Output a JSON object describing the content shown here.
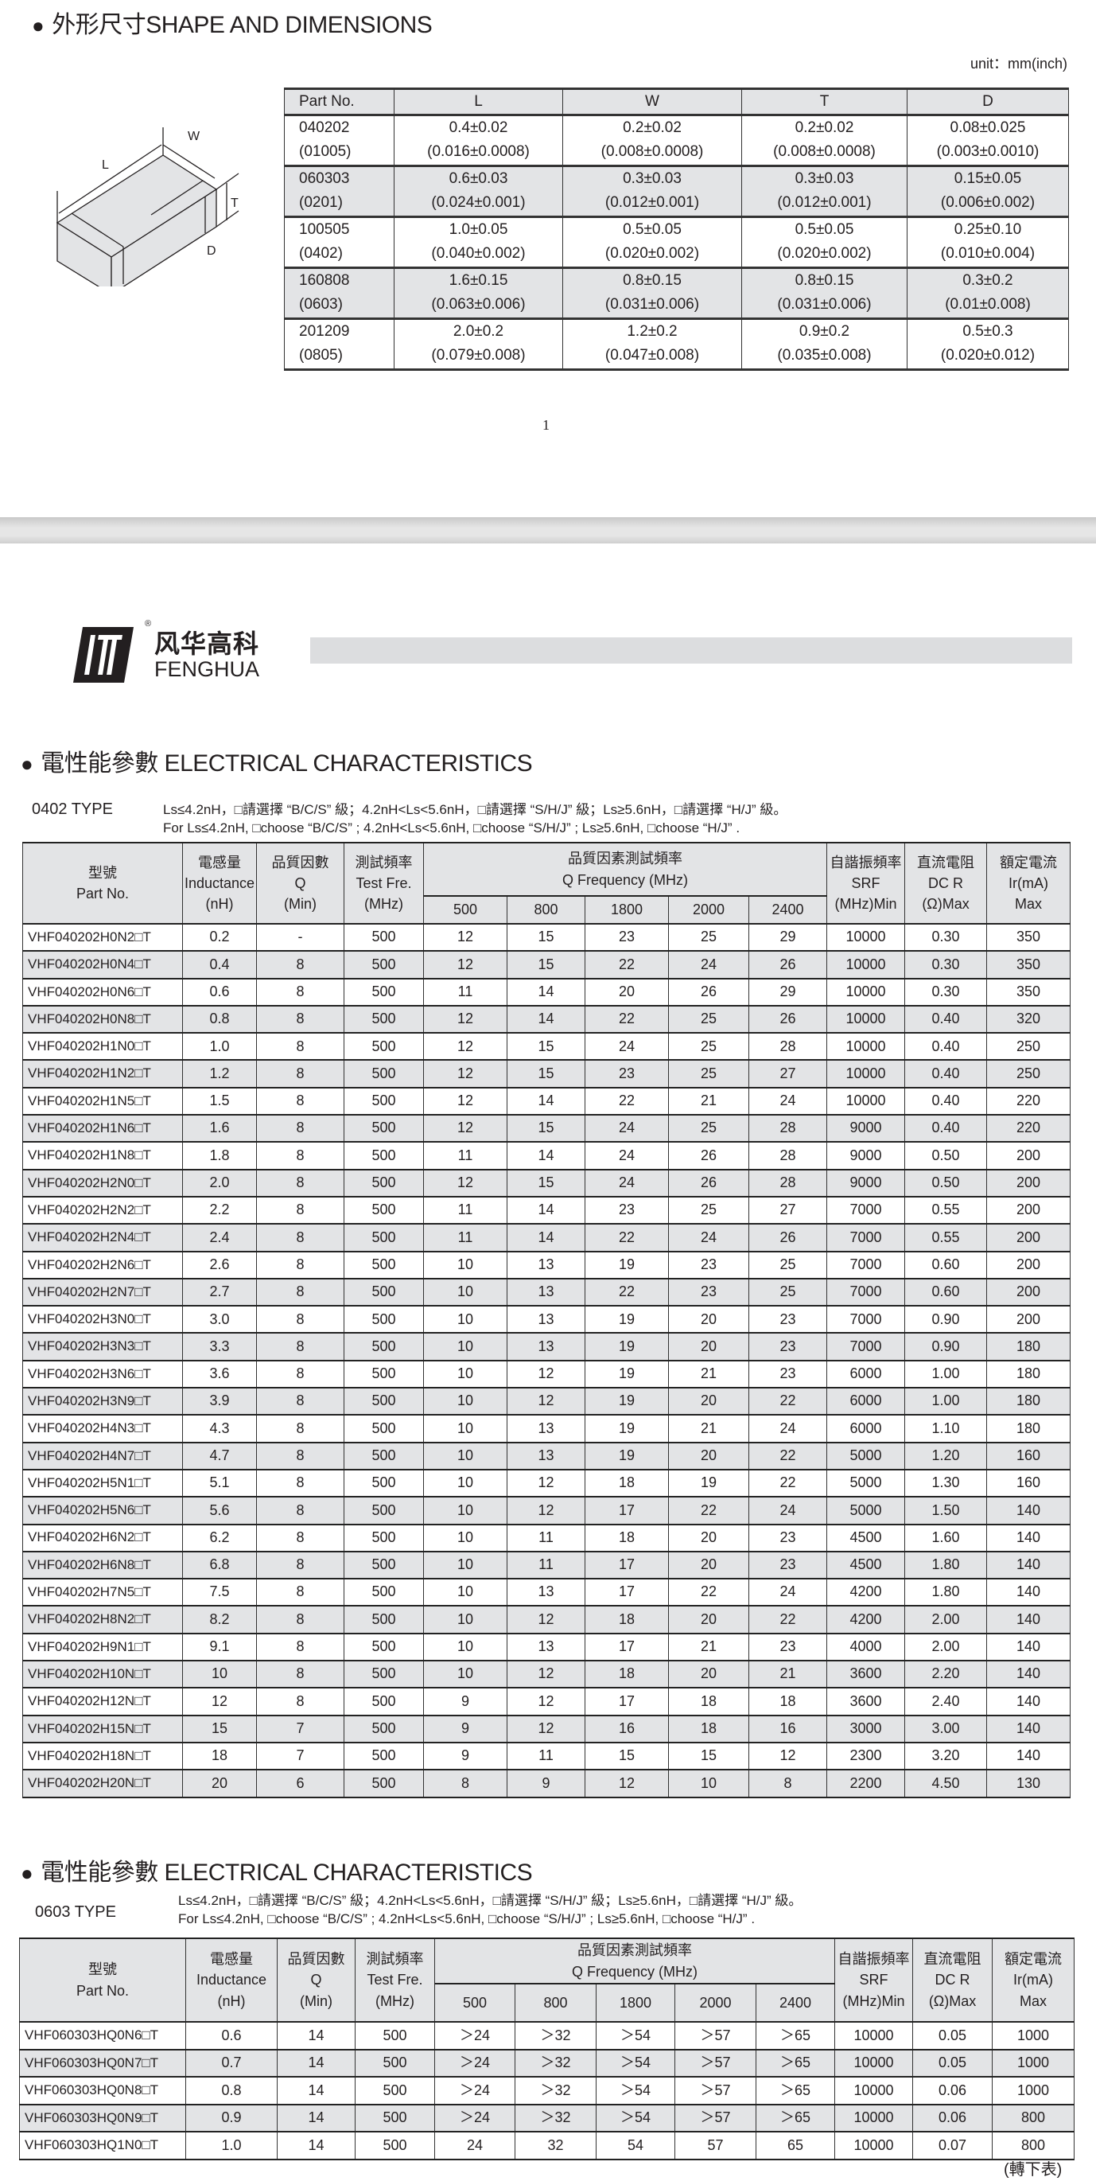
{
  "shape": {
    "title": "外形尺寸SHAPE AND DIMENSIONS",
    "unit": "unit：mm(inch)",
    "diagram_labels": {
      "L": "L",
      "W": "W",
      "T": "T",
      "D": "D"
    },
    "headers": [
      "Part No.",
      "L",
      "W",
      "T",
      "D"
    ],
    "rows": [
      [
        [
          "040202",
          "(01005)"
        ],
        [
          "0.4±0.02",
          "(0.016±0.0008)"
        ],
        [
          "0.2±0.02",
          "(0.008±0.0008)"
        ],
        [
          "0.2±0.02",
          "(0.008±0.0008)"
        ],
        [
          "0.08±0.025",
          "(0.003±0.0010)"
        ]
      ],
      [
        [
          "060303",
          "(0201)"
        ],
        [
          "0.6±0.03",
          "(0.024±0.001)"
        ],
        [
          "0.3±0.03",
          "(0.012±0.001)"
        ],
        [
          "0.3±0.03",
          "(0.012±0.001)"
        ],
        [
          "0.15±0.05",
          "(0.006±0.002)"
        ]
      ],
      [
        [
          "100505",
          "(0402)"
        ],
        [
          "1.0±0.05",
          "(0.040±0.002)"
        ],
        [
          "0.5±0.05",
          "(0.020±0.002)"
        ],
        [
          "0.5±0.05",
          "(0.020±0.002)"
        ],
        [
          "0.25±0.10",
          "(0.010±0.004)"
        ]
      ],
      [
        [
          "160808",
          "(0603)"
        ],
        [
          "1.6±0.15",
          "(0.063±0.006)"
        ],
        [
          "0.8±0.15",
          "(0.031±0.006)"
        ],
        [
          "0.8±0.15",
          "(0.031±0.006)"
        ],
        [
          "0.3±0.2",
          "(0.01±0.008)"
        ]
      ],
      [
        [
          "201209",
          "(0805)"
        ],
        [
          "2.0±0.2",
          "(0.079±0.008)"
        ],
        [
          "1.2±0.2",
          "(0.047±0.008)"
        ],
        [
          "0.9±0.2",
          "(0.035±0.008)"
        ],
        [
          "0.5±0.3",
          "(0.020±0.012)"
        ]
      ]
    ]
  },
  "page_number": "1",
  "logo": {
    "cn": "风华高科",
    "en": "FENGHUA",
    "mark": "®"
  },
  "ee_headers": {
    "part": [
      "型號",
      "Part No."
    ],
    "inductance": [
      "電感量",
      "Inductance",
      "(nH)"
    ],
    "q": [
      "品質因數",
      "Q",
      "(Min)"
    ],
    "test": [
      "測試頻率",
      "Test Fre.",
      "(MHz)"
    ],
    "qfreq": [
      "品質因素測試頻率",
      "Q Frequency (MHz)"
    ],
    "freqs": [
      "500",
      "800",
      "1800",
      "2000",
      "2400"
    ],
    "srf": [
      "自諧振頻率",
      "SRF",
      "(MHz)Min"
    ],
    "dcr": [
      "直流電阻",
      "DC R",
      "(Ω)Max"
    ],
    "ir": [
      "額定電流",
      "Ir(mA)",
      "Max"
    ]
  },
  "section_0402": {
    "title": "電性能參數 ELECTRICAL CHARACTERISTICS",
    "type": "0402 TYPE",
    "note_cn": "Ls≤4.2nH，□請選擇 “B/C/S” 級；4.2nH<Ls<5.6nH，□請選擇 “S/H/J” 級；Ls≥5.6nH，□請選擇 “H/J” 級。",
    "note_en": "For Ls≤4.2nH, □choose “B/C/S” ; 4.2nH<Ls<5.6nH, □choose “S/H/J” ; Ls≥5.6nH, □choose “H/J” .",
    "rows": [
      [
        "VHF040202H0N2□T",
        "0.2",
        "-",
        "500",
        "12",
        "15",
        "23",
        "25",
        "29",
        "10000",
        "0.30",
        "350"
      ],
      [
        "VHF040202H0N4□T",
        "0.4",
        "8",
        "500",
        "12",
        "15",
        "22",
        "24",
        "26",
        "10000",
        "0.30",
        "350"
      ],
      [
        "VHF040202H0N6□T",
        "0.6",
        "8",
        "500",
        "11",
        "14",
        "20",
        "26",
        "29",
        "10000",
        "0.30",
        "350"
      ],
      [
        "VHF040202H0N8□T",
        "0.8",
        "8",
        "500",
        "12",
        "14",
        "22",
        "25",
        "26",
        "10000",
        "0.40",
        "320"
      ],
      [
        "VHF040202H1N0□T",
        "1.0",
        "8",
        "500",
        "12",
        "15",
        "24",
        "25",
        "28",
        "10000",
        "0.40",
        "250"
      ],
      [
        "VHF040202H1N2□T",
        "1.2",
        "8",
        "500",
        "12",
        "15",
        "23",
        "25",
        "27",
        "10000",
        "0.40",
        "250"
      ],
      [
        "VHF040202H1N5□T",
        "1.5",
        "8",
        "500",
        "12",
        "14",
        "22",
        "21",
        "24",
        "10000",
        "0.40",
        "220"
      ],
      [
        "VHF040202H1N6□T",
        "1.6",
        "8",
        "500",
        "12",
        "15",
        "24",
        "25",
        "28",
        "9000",
        "0.40",
        "220"
      ],
      [
        "VHF040202H1N8□T",
        "1.8",
        "8",
        "500",
        "11",
        "14",
        "24",
        "26",
        "28",
        "9000",
        "0.50",
        "200"
      ],
      [
        "VHF040202H2N0□T",
        "2.0",
        "8",
        "500",
        "12",
        "15",
        "24",
        "26",
        "28",
        "9000",
        "0.50",
        "200"
      ],
      [
        "VHF040202H2N2□T",
        "2.2",
        "8",
        "500",
        "11",
        "14",
        "23",
        "25",
        "27",
        "7000",
        "0.55",
        "200"
      ],
      [
        "VHF040202H2N4□T",
        "2.4",
        "8",
        "500",
        "11",
        "14",
        "22",
        "24",
        "26",
        "7000",
        "0.55",
        "200"
      ],
      [
        "VHF040202H2N6□T",
        "2.6",
        "8",
        "500",
        "10",
        "13",
        "19",
        "23",
        "25",
        "7000",
        "0.60",
        "200"
      ],
      [
        "VHF040202H2N7□T",
        "2.7",
        "8",
        "500",
        "10",
        "13",
        "22",
        "23",
        "25",
        "7000",
        "0.60",
        "200"
      ],
      [
        "VHF040202H3N0□T",
        "3.0",
        "8",
        "500",
        "10",
        "13",
        "19",
        "20",
        "23",
        "7000",
        "0.90",
        "200"
      ],
      [
        "VHF040202H3N3□T",
        "3.3",
        "8",
        "500",
        "10",
        "13",
        "19",
        "20",
        "23",
        "7000",
        "0.90",
        "180"
      ],
      [
        "VHF040202H3N6□T",
        "3.6",
        "8",
        "500",
        "10",
        "12",
        "19",
        "21",
        "23",
        "6000",
        "1.00",
        "180"
      ],
      [
        "VHF040202H3N9□T",
        "3.9",
        "8",
        "500",
        "10",
        "12",
        "19",
        "20",
        "22",
        "6000",
        "1.00",
        "180"
      ],
      [
        "VHF040202H4N3□T",
        "4.3",
        "8",
        "500",
        "10",
        "13",
        "19",
        "21",
        "24",
        "6000",
        "1.10",
        "180"
      ],
      [
        "VHF040202H4N7□T",
        "4.7",
        "8",
        "500",
        "10",
        "13",
        "19",
        "20",
        "22",
        "5000",
        "1.20",
        "160"
      ],
      [
        "VHF040202H5N1□T",
        "5.1",
        "8",
        "500",
        "10",
        "12",
        "18",
        "19",
        "22",
        "5000",
        "1.30",
        "160"
      ],
      [
        "VHF040202H5N6□T",
        "5.6",
        "8",
        "500",
        "10",
        "12",
        "17",
        "22",
        "24",
        "5000",
        "1.50",
        "140"
      ],
      [
        "VHF040202H6N2□T",
        "6.2",
        "8",
        "500",
        "10",
        "11",
        "18",
        "20",
        "23",
        "4500",
        "1.60",
        "140"
      ],
      [
        "VHF040202H6N8□T",
        "6.8",
        "8",
        "500",
        "10",
        "11",
        "17",
        "20",
        "23",
        "4500",
        "1.80",
        "140"
      ],
      [
        "VHF040202H7N5□T",
        "7.5",
        "8",
        "500",
        "10",
        "13",
        "17",
        "22",
        "24",
        "4200",
        "1.80",
        "140"
      ],
      [
        "VHF040202H8N2□T",
        "8.2",
        "8",
        "500",
        "10",
        "12",
        "18",
        "20",
        "22",
        "4200",
        "2.00",
        "140"
      ],
      [
        "VHF040202H9N1□T",
        "9.1",
        "8",
        "500",
        "10",
        "13",
        "17",
        "21",
        "23",
        "4000",
        "2.00",
        "140"
      ],
      [
        "VHF040202H10N□T",
        "10",
        "8",
        "500",
        "10",
        "12",
        "18",
        "20",
        "21",
        "3600",
        "2.20",
        "140"
      ],
      [
        "VHF040202H12N□T",
        "12",
        "8",
        "500",
        "9",
        "12",
        "17",
        "18",
        "18",
        "3600",
        "2.40",
        "140"
      ],
      [
        "VHF040202H15N□T",
        "15",
        "7",
        "500",
        "9",
        "12",
        "16",
        "18",
        "16",
        "3000",
        "3.00",
        "140"
      ],
      [
        "VHF040202H18N□T",
        "18",
        "7",
        "500",
        "9",
        "11",
        "15",
        "15",
        "12",
        "2300",
        "3.20",
        "140"
      ],
      [
        "VHF040202H20N□T",
        "20",
        "6",
        "500",
        "8",
        "9",
        "12",
        "10",
        "8",
        "2200",
        "4.50",
        "130"
      ]
    ]
  },
  "section_0603": {
    "title": "電性能參數 ELECTRICAL CHARACTERISTICS",
    "type": "0603 TYPE",
    "note_cn": "Ls≤4.2nH，□請選擇 “B/C/S” 級；4.2nH<Ls<5.6nH，□請選擇 “S/H/J” 級；Ls≥5.6nH，□請選擇 “H/J” 級。",
    "note_en": "For Ls≤4.2nH, □choose “B/C/S” ; 4.2nH<Ls<5.6nH, □choose “S/H/J” ; Ls≥5.6nH, □choose “H/J” .",
    "rows": [
      [
        "VHF060303HQ0N6□T",
        "0.6",
        "14",
        "500",
        "＞24",
        "＞32",
        "＞54",
        "＞57",
        "＞65",
        "10000",
        "0.05",
        "1000"
      ],
      [
        "VHF060303HQ0N7□T",
        "0.7",
        "14",
        "500",
        "＞24",
        "＞32",
        "＞54",
        "＞57",
        "＞65",
        "10000",
        "0.05",
        "1000"
      ],
      [
        "VHF060303HQ0N8□T",
        "0.8",
        "14",
        "500",
        "＞24",
        "＞32",
        "＞54",
        "＞57",
        "＞65",
        "10000",
        "0.06",
        "1000"
      ],
      [
        "VHF060303HQ0N9□T",
        "0.9",
        "14",
        "500",
        "＞24",
        "＞32",
        "＞54",
        "＞57",
        "＞65",
        "10000",
        "0.06",
        "800"
      ],
      [
        "VHF060303HQ1N0□T",
        "1.0",
        "14",
        "500",
        "24",
        "32",
        "54",
        "57",
        "65",
        "10000",
        "0.07",
        "800"
      ]
    ],
    "continued": "(轉下表)"
  }
}
